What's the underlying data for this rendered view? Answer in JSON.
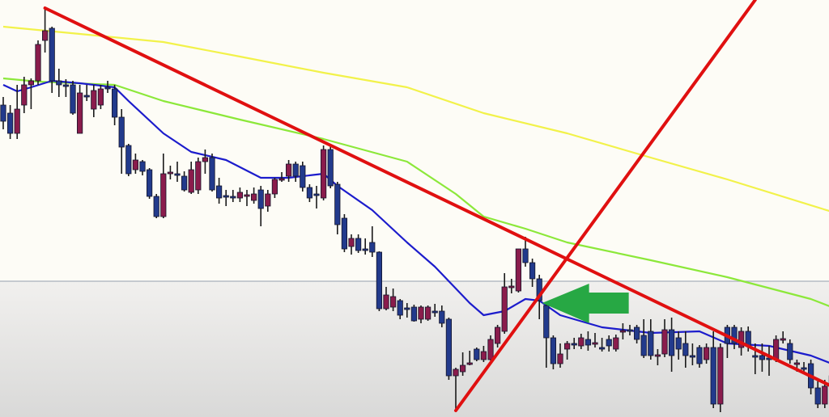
{
  "chart_data": {
    "type": "candlestick",
    "title": "",
    "xlabel": "",
    "ylabel": "",
    "grid": false,
    "ylim": [
      0,
      52
    ],
    "colors": {
      "bullish": "#8a1c4c",
      "bearish": "#223a8c",
      "wick": "#1a1a1a",
      "background_top": "#fdfcf6",
      "background_bottom": "#d9d9d8",
      "ma_yellow": "#f2f24a",
      "ma_green": "#8ce83a",
      "ma_blue": "#1c1ccc",
      "trendline": "#e01010",
      "horizontal_level": "#a9b0bc",
      "arrow": "#27a844"
    },
    "candles": [
      [
        39,
        40,
        36,
        37
      ],
      [
        38,
        39,
        34.8,
        35.5
      ],
      [
        35.5,
        41.5,
        34.8,
        38.5
      ],
      [
        39,
        42.5,
        38,
        41.5
      ],
      [
        41.5,
        42.3,
        38.5,
        42
      ],
      [
        42,
        47,
        41.5,
        46.5
      ],
      [
        47,
        51,
        45.5,
        48.2
      ],
      [
        48.5,
        48.7,
        40.5,
        42
      ],
      [
        42,
        43.5,
        40,
        41.5
      ],
      [
        41.5,
        42.2,
        40,
        41.4
      ],
      [
        41.5,
        42,
        37.8,
        38
      ],
      [
        35.5,
        41.5,
        35.5,
        40.5
      ],
      [
        40.2,
        41.5,
        39.5,
        40.1
      ],
      [
        38.5,
        41.5,
        37.5,
        40.8
      ],
      [
        39,
        41.5,
        38.5,
        41
      ],
      [
        41.2,
        42,
        40.5,
        41.1
      ],
      [
        41,
        41.5,
        36.5,
        37.5
      ],
      [
        37.5,
        38.5,
        30.5,
        33.8
      ],
      [
        34,
        34.2,
        30.2,
        30.5
      ],
      [
        31,
        33,
        30.5,
        32.2
      ],
      [
        32,
        32.2,
        30.3,
        30.8
      ],
      [
        31,
        31.2,
        27.4,
        27.7
      ],
      [
        27.7,
        28,
        25,
        25.2
      ],
      [
        25.2,
        33,
        25,
        30.5
      ],
      [
        30.5,
        31.5,
        29.8,
        30.7
      ],
      [
        30.5,
        32,
        29.5,
        30.4
      ],
      [
        30.2,
        30.8,
        28.3,
        28.5
      ],
      [
        28.2,
        32,
        28,
        31
      ],
      [
        28.5,
        32.5,
        28,
        32
      ],
      [
        32,
        33.5,
        30.5,
        32.5
      ],
      [
        32.5,
        33,
        28.3,
        28.5
      ],
      [
        29,
        30,
        26.8,
        27.5
      ],
      [
        27.8,
        28.5,
        26.5,
        27.7
      ],
      [
        27.7,
        28.5,
        27,
        27.6
      ],
      [
        27.5,
        28.8,
        27,
        28.2
      ],
      [
        27.8,
        28.5,
        26.5,
        27.9
      ],
      [
        27.2,
        28.8,
        26.8,
        28
      ],
      [
        28.5,
        29,
        24,
        26.2
      ],
      [
        26.5,
        28.5,
        25.8,
        28
      ],
      [
        28,
        30,
        27.5,
        29.8
      ],
      [
        29.8,
        30.7,
        29.5,
        29.9
      ],
      [
        30.2,
        32.2,
        29.5,
        31.7
      ],
      [
        31.7,
        32,
        29.5,
        30.2
      ],
      [
        31.5,
        32,
        28.3,
        28.8
      ],
      [
        28.8,
        29.2,
        27,
        27.5
      ],
      [
        28,
        29,
        26.2,
        27.9
      ],
      [
        27.5,
        34,
        27.2,
        33.5
      ],
      [
        33.5,
        34.2,
        28.7,
        29
      ],
      [
        29.2,
        29.5,
        23,
        24.2
      ],
      [
        25,
        25.5,
        20.8,
        21.2
      ],
      [
        21.5,
        23,
        20.5,
        22.5
      ],
      [
        22.5,
        23,
        20.7,
        21
      ],
      [
        21.2,
        22.5,
        20.5,
        21.1
      ],
      [
        22,
        24,
        20.2,
        20.8
      ],
      [
        20.8,
        20.9,
        13.5,
        13.8
      ],
      [
        13.8,
        16.5,
        13.6,
        15.5
      ],
      [
        14,
        16.3,
        13.5,
        15.3
      ],
      [
        14.8,
        15,
        12.5,
        13
      ],
      [
        13.9,
        14.5,
        12.7,
        13.8
      ],
      [
        14,
        14.3,
        12.2,
        12.3
      ],
      [
        12.5,
        14.2,
        12,
        14
      ],
      [
        12.5,
        14.2,
        12.3,
        14
      ],
      [
        13.5,
        14.4,
        12.8,
        13.4
      ],
      [
        13.5,
        14.2,
        11.5,
        12
      ],
      [
        12.5,
        12.7,
        5,
        5.5
      ],
      [
        5.5,
        6.5,
        1.2,
        6.3
      ],
      [
        6,
        8.4,
        5.5,
        6.8
      ],
      [
        7,
        8.6,
        6.8,
        7.1
      ],
      [
        8.8,
        9,
        7.3,
        7.5
      ],
      [
        7.5,
        9.2,
        7.2,
        8.5
      ],
      [
        7.5,
        10.5,
        7.4,
        10
      ],
      [
        9.5,
        11.8,
        9,
        11.5
      ],
      [
        11,
        18.2,
        10.7,
        16.5
      ],
      [
        16.5,
        17.5,
        15.7,
        16.6
      ],
      [
        16,
        21.2,
        15.8,
        21.2
      ],
      [
        21.2,
        22.7,
        19,
        19.5
      ],
      [
        19.5,
        20,
        16.5,
        17.5
      ],
      [
        17.5,
        18,
        12.5,
        14.8
      ],
      [
        14.2,
        14.5,
        6.5,
        10.2
      ],
      [
        10.2,
        10.5,
        6.3,
        7
      ],
      [
        7,
        9.5,
        6.5,
        8.2
      ],
      [
        8.8,
        9.8,
        7.5,
        9.5
      ],
      [
        9.5,
        10.2,
        8.8,
        9.4
      ],
      [
        9.2,
        10.7,
        8.8,
        10.2
      ],
      [
        10,
        11,
        8.6,
        9.3
      ],
      [
        9.5,
        10.8,
        9,
        9.6
      ],
      [
        9,
        10.2,
        8.5,
        8.9
      ],
      [
        10,
        10.5,
        8.5,
        9.2
      ],
      [
        8.8,
        10.6,
        8.5,
        10.2
      ],
      [
        11,
        12,
        10,
        11.1
      ],
      [
        11.2,
        11.8,
        10.5,
        11.1
      ],
      [
        11.5,
        11.8,
        9.5,
        10
      ],
      [
        10.5,
        12.5,
        7.7,
        8
      ],
      [
        11,
        12.5,
        7.5,
        8
      ],
      [
        8,
        8.8,
        6.8,
        8.1
      ],
      [
        8.2,
        12.5,
        7.8,
        11.2
      ],
      [
        11.2,
        12.7,
        6,
        8
      ],
      [
        10.2,
        11,
        7.5,
        8.8
      ],
      [
        9.5,
        11,
        6.5,
        8
      ],
      [
        8,
        9.5,
        6.8,
        7.9
      ],
      [
        9,
        9.3,
        6.5,
        7
      ],
      [
        7.5,
        9.5,
        7,
        9
      ],
      [
        9,
        11,
        1.5,
        2
      ],
      [
        2,
        9.5,
        1,
        9
      ],
      [
        11.5,
        11.8,
        7.7,
        9.5
      ],
      [
        11.5,
        11.8,
        8.8,
        9.5
      ],
      [
        9,
        11.5,
        8,
        11
      ],
      [
        11,
        11.6,
        8.5,
        9.2
      ],
      [
        8,
        9.5,
        5.7,
        7.9
      ],
      [
        8,
        9.5,
        6,
        7.5
      ],
      [
        7.7,
        9.2,
        5.5,
        7.6
      ],
      [
        7.5,
        10.5,
        7.2,
        10
      ],
      [
        10,
        11,
        9.5,
        10.1
      ],
      [
        9.5,
        10,
        7,
        7.5
      ],
      [
        7,
        7.5,
        6,
        7.1
      ],
      [
        6.5,
        7.2,
        5.8,
        6.4
      ],
      [
        7,
        7.5,
        3.2,
        4
      ],
      [
        4,
        5,
        1.5,
        2
      ],
      [
        2,
        5,
        1.5,
        4.2
      ],
      [
        4.2,
        6,
        3,
        5.5
      ]
    ],
    "moving_averages": [
      {
        "color_key": "ma_yellow",
        "points": [
          [
            0,
            48.7
          ],
          [
            11,
            47.8
          ],
          [
            23,
            46.8
          ],
          [
            34,
            45
          ],
          [
            46,
            43
          ],
          [
            58,
            41.2
          ],
          [
            69,
            38
          ],
          [
            81,
            35.5
          ],
          [
            93,
            32.5
          ],
          [
            104,
            29.8
          ],
          [
            119,
            25.8
          ]
        ]
      },
      {
        "color_key": "ma_green",
        "points": [
          [
            0,
            42.3
          ],
          [
            5,
            41.9
          ],
          [
            16,
            41.5
          ],
          [
            23,
            39.5
          ],
          [
            34,
            37.2
          ],
          [
            46,
            34.8
          ],
          [
            58,
            32
          ],
          [
            65,
            28
          ],
          [
            69,
            25.2
          ],
          [
            75,
            23.7
          ],
          [
            81,
            22
          ],
          [
            93,
            19.8
          ],
          [
            104,
            17.7
          ],
          [
            116,
            15
          ],
          [
            119,
            14
          ]
        ]
      },
      {
        "color_key": "ma_blue",
        "points": [
          [
            0,
            41.5
          ],
          [
            2,
            40.7
          ],
          [
            4,
            41.2
          ],
          [
            7,
            42
          ],
          [
            11,
            41.7
          ],
          [
            16,
            41.2
          ],
          [
            18,
            39.5
          ],
          [
            23,
            35.5
          ],
          [
            27,
            33.2
          ],
          [
            32,
            32.2
          ],
          [
            37,
            30
          ],
          [
            41,
            30
          ],
          [
            46,
            30.5
          ],
          [
            48,
            29
          ],
          [
            53,
            26
          ],
          [
            58,
            22
          ],
          [
            62,
            19
          ],
          [
            67,
            14.5
          ],
          [
            69,
            13
          ],
          [
            72,
            13.5
          ],
          [
            75,
            15
          ],
          [
            77,
            14.8
          ],
          [
            80,
            13
          ],
          [
            86,
            11.5
          ],
          [
            93,
            10.8
          ],
          [
            100,
            11
          ],
          [
            104,
            9.5
          ],
          [
            110,
            9.2
          ],
          [
            116,
            8
          ],
          [
            119,
            7
          ]
        ]
      }
    ],
    "trendlines": [
      {
        "from": [
          6,
          51
        ],
        "to": [
          119,
          4.2
        ]
      },
      {
        "from": [
          65,
          1.2
        ],
        "to": [
          108,
          52
        ]
      }
    ],
    "horizontal_level": 17.2,
    "annotation_arrow": {
      "direction": "left",
      "tip": [
        77.4,
        14.5
      ]
    }
  }
}
